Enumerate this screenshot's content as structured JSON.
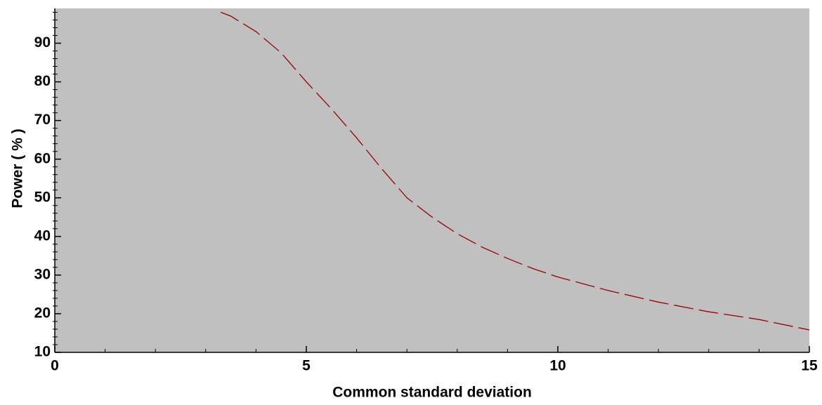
{
  "chart_data": {
    "type": "line",
    "x_label": "Common standard deviation",
    "y_label": "Power ( % )",
    "x": [
      3.3,
      3.5,
      4,
      4.5,
      5,
      5.5,
      6,
      6.5,
      7,
      7.5,
      8,
      8.5,
      9,
      9.5,
      10,
      11,
      12,
      13,
      14,
      15
    ],
    "series": [
      {
        "color": "#990000",
        "values": [
          98,
          97,
          93,
          87.5,
          80,
          73,
          65.5,
          57.5,
          50,
          45,
          40.7,
          37.2,
          34.3,
          31.7,
          29.5,
          26,
          23,
          20.5,
          18.5,
          15.8
        ]
      }
    ],
    "xlim": [
      0,
      15
    ],
    "xticks": [
      0,
      5,
      10,
      15
    ],
    "xminorticks": [
      1,
      2,
      3,
      4,
      6,
      7,
      8,
      9,
      11,
      12,
      13,
      14
    ],
    "ylim": [
      10,
      99
    ],
    "yticks": [
      10,
      20,
      30,
      40,
      50,
      60,
      70,
      80,
      90
    ],
    "yminorticks": [
      12,
      14,
      16,
      18,
      22,
      24,
      26,
      28,
      32,
      34,
      36,
      38,
      42,
      44,
      46,
      48,
      52,
      54,
      56,
      58,
      62,
      64,
      66,
      68,
      72,
      74,
      76,
      78,
      82,
      84,
      86,
      88,
      92,
      94,
      96,
      98
    ],
    "background": "#c0c0c0",
    "dashed": true
  }
}
